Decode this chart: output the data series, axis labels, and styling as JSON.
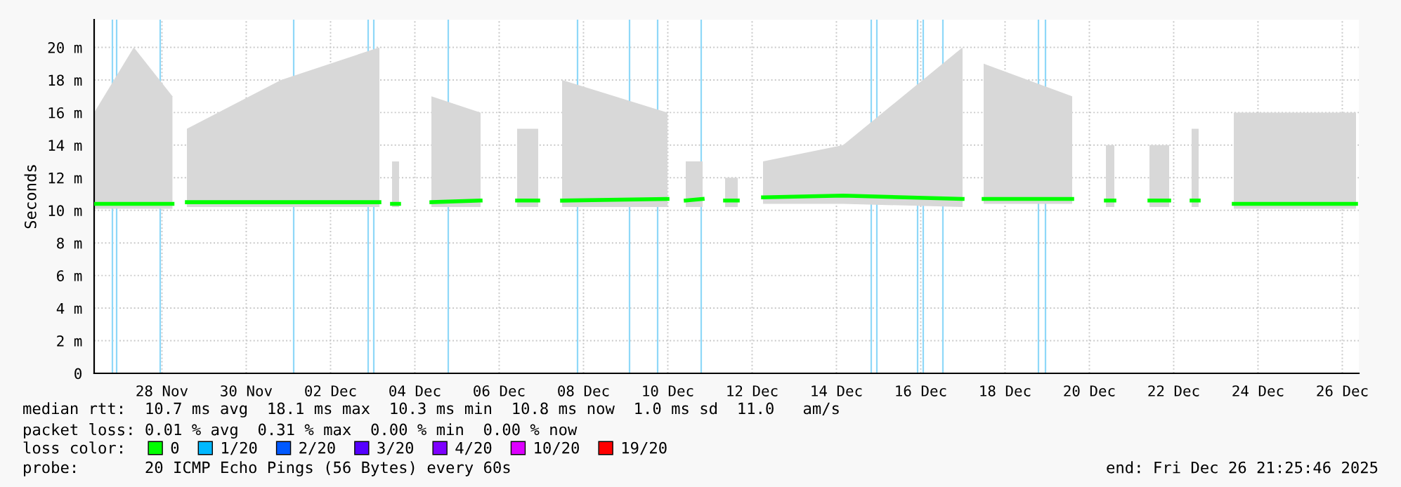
{
  "chart_data": {
    "type": "line",
    "ylabel": "Seconds",
    "x": [
      "2025-11-26T21:25",
      "2025-11-27T20:00",
      "2025-11-28T18:00",
      "2025-11-28T21:00",
      "2025-11-29T02:13",
      "2025-12-01T07:49",
      "2025-12-03T15:49",
      "2025-12-03T20:00",
      "2025-12-03T23:00",
      "2025-12-04T03:00",
      "2025-12-04T06:00",
      "2025-12-04T21:25",
      "2025-12-06T01:25",
      "2025-12-06T12:00",
      "2025-12-06T22:13",
      "2025-12-07T10:13",
      "2025-12-07T17:00",
      "2025-12-07T23:49",
      "2025-12-10T11:49",
      "2025-12-10T17:00",
      "2025-12-10T22:13",
      "2025-12-11T07:49",
      "2025-12-11T14:00",
      "2025-12-11T20:37",
      "2025-12-12T03:49",
      "2025-12-12T11:00",
      "2025-12-12T18:13",
      "2025-12-14T15:49",
      "2025-12-17T11:49",
      "2025-12-17T18:00",
      "2025-12-17T23:49",
      "2025-12-20T02:13",
      "2025-12-20T11:00",
      "2025-12-20T21:25",
      "2025-12-21T02:13",
      "2025-12-21T12:00",
      "2025-12-21T22:13",
      "2025-12-22T09:25",
      "2025-12-22T16:00",
      "2025-12-22T22:13",
      "2025-12-23T02:13",
      "2025-12-23T12:00",
      "2025-12-23T22:13",
      "2025-12-26T19:49"
    ],
    "series": [
      {
        "name": "0",
        "color": "#00ff00",
        "values": [
          10.4,
          10.4,
          10.4,
          null,
          10.5,
          10.5,
          10.5,
          null,
          10.4,
          10.4,
          null,
          10.5,
          10.6,
          null,
          10.6,
          10.6,
          null,
          10.6,
          10.7,
          null,
          10.6,
          10.7,
          null,
          10.6,
          10.6,
          null,
          10.8,
          10.9,
          10.7,
          null,
          10.7,
          10.7,
          null,
          10.6,
          10.6,
          null,
          10.6,
          10.6,
          null,
          10.6,
          10.6,
          null,
          10.4,
          10.4
        ],
        "lower": [
          10.1,
          10.1,
          10.1,
          null,
          10.2,
          10.2,
          10.2,
          null,
          10.2,
          10.2,
          null,
          10.2,
          10.2,
          null,
          10.2,
          10.2,
          null,
          10.2,
          10.2,
          null,
          10.2,
          10.2,
          null,
          10.2,
          10.2,
          null,
          10.4,
          10.4,
          10.2,
          null,
          10.4,
          10.4,
          null,
          10.2,
          10.2,
          null,
          10.2,
          10.2,
          null,
          10.2,
          10.2,
          null,
          10.1,
          10.1
        ],
        "upper": [
          16,
          20,
          17,
          null,
          15,
          18,
          20,
          null,
          13,
          13,
          null,
          17,
          16,
          null,
          15,
          15,
          null,
          18,
          16,
          null,
          13,
          13,
          null,
          12,
          12,
          null,
          13,
          14,
          20,
          null,
          19,
          17,
          null,
          14,
          14,
          null,
          14,
          14,
          null,
          15,
          15,
          null,
          16,
          16
        ]
      },
      {
        "name": "1/20",
        "color": "#00b8ff",
        "values": [
          null,
          null,
          null,
          null,
          null,
          null,
          null,
          null,
          null,
          null,
          null,
          null,
          null,
          null,
          null,
          null,
          null,
          null,
          null,
          null,
          null,
          null,
          null,
          null,
          null,
          null,
          null,
          null,
          null,
          null,
          null,
          null,
          null,
          null,
          null,
          null,
          null,
          null,
          null,
          null,
          null,
          null,
          null,
          null
        ]
      },
      {
        "name": "2/20",
        "color": "#0059ff",
        "values": [
          null,
          null,
          null,
          null,
          null,
          null,
          null,
          null,
          null,
          null,
          null,
          null,
          null,
          null,
          null,
          null,
          null,
          null,
          null,
          null,
          null,
          null,
          null,
          null,
          null,
          null,
          null,
          null,
          null,
          null,
          null,
          null,
          null,
          null,
          null,
          null,
          null,
          null,
          null,
          null,
          null,
          null,
          null,
          null
        ]
      },
      {
        "name": "3/20",
        "color": "#5500ff",
        "values": [
          null,
          null,
          null,
          null,
          null,
          null,
          null,
          null,
          null,
          null,
          null,
          null,
          null,
          null,
          null,
          null,
          null,
          null,
          null,
          null,
          null,
          null,
          null,
          null,
          null,
          null,
          null,
          null,
          null,
          null,
          null,
          null,
          null,
          null,
          null,
          null,
          null,
          null,
          null,
          null,
          null,
          null,
          null,
          null
        ]
      },
      {
        "name": "4/20",
        "color": "#7e00ff",
        "values": [
          null,
          null,
          null,
          null,
          null,
          null,
          null,
          null,
          null,
          null,
          null,
          null,
          null,
          null,
          null,
          null,
          null,
          null,
          null,
          null,
          null,
          null,
          null,
          null,
          null,
          null,
          null,
          null,
          null,
          null,
          null,
          null,
          null,
          null,
          null,
          null,
          null,
          null,
          null,
          null,
          null,
          null,
          null,
          null
        ]
      },
      {
        "name": "10/20",
        "color": "#dd00ff",
        "values": [
          null,
          null,
          null,
          null,
          null,
          null,
          null,
          null,
          null,
          null,
          null,
          null,
          null,
          null,
          null,
          null,
          null,
          null,
          null,
          null,
          null,
          null,
          null,
          null,
          null,
          null,
          null,
          null,
          null,
          null,
          null,
          null,
          null,
          null,
          null,
          null,
          null,
          null,
          null,
          null,
          null,
          null,
          null,
          null
        ]
      },
      {
        "name": "19/20",
        "color": "#ff0000",
        "values": [
          null,
          null,
          null,
          null,
          null,
          null,
          null,
          null,
          null,
          null,
          null,
          null,
          null,
          null,
          null,
          null,
          null,
          null,
          null,
          null,
          null,
          null,
          null,
          null,
          null,
          null,
          null,
          null,
          null,
          null,
          null,
          null,
          null,
          null,
          null,
          null,
          null,
          null,
          null,
          null,
          null,
          null,
          null,
          null
        ]
      }
    ],
    "ref_lines": [
      {
        "axis": "x",
        "value": "2025-11-27T07:49",
        "color": "#8fd8f8"
      },
      {
        "axis": "x",
        "value": "2025-11-27T10:13",
        "color": "#8fd8f8"
      },
      {
        "axis": "x",
        "value": "2025-11-28T11:01",
        "color": "#8fd8f8"
      },
      {
        "axis": "x",
        "value": "2025-12-01T15:01",
        "color": "#8fd8f8"
      },
      {
        "axis": "x",
        "value": "2025-12-03T09:25",
        "color": "#8fd8f8"
      },
      {
        "axis": "x",
        "value": "2025-12-03T12:37",
        "color": "#8fd8f8"
      },
      {
        "axis": "x",
        "value": "2025-12-05T07:01",
        "color": "#8fd8f8"
      },
      {
        "axis": "x",
        "value": "2025-12-08T08:37",
        "color": "#8fd8f8"
      },
      {
        "axis": "x",
        "value": "2025-12-09T14:13",
        "color": "#8fd8f8"
      },
      {
        "axis": "x",
        "value": "2025-12-10T06:13",
        "color": "#8fd8f8"
      },
      {
        "axis": "x",
        "value": "2025-12-11T07:01",
        "color": "#8fd8f8"
      },
      {
        "axis": "x",
        "value": "2025-12-15T07:49",
        "color": "#8fd8f8"
      },
      {
        "axis": "x",
        "value": "2025-12-15T11:01",
        "color": "#8fd8f8"
      },
      {
        "axis": "x",
        "value": "2025-12-16T10:13",
        "color": "#8fd8f8"
      },
      {
        "axis": "x",
        "value": "2025-12-16T13:25",
        "color": "#8fd8f8"
      },
      {
        "axis": "x",
        "value": "2025-12-17T00:37",
        "color": "#8fd8f8"
      },
      {
        "axis": "x",
        "value": "2025-12-19T07:01",
        "color": "#8fd8f8"
      },
      {
        "axis": "x",
        "value": "2025-12-19T11:01",
        "color": "#8fd8f8"
      }
    ],
    "xlim": [
      "2025-11-26T21:25",
      "2025-12-26T21:25"
    ],
    "xticks": [
      {
        "value": "2025-11-28T12:00",
        "label": "28 Nov"
      },
      {
        "value": "2025-11-30T12:00",
        "label": "30 Nov"
      },
      {
        "value": "2025-12-02T12:00",
        "label": "02 Dec"
      },
      {
        "value": "2025-12-04T12:00",
        "label": "04 Dec"
      },
      {
        "value": "2025-12-06T12:00",
        "label": "06 Dec"
      },
      {
        "value": "2025-12-08T12:00",
        "label": "08 Dec"
      },
      {
        "value": "2025-12-10T12:00",
        "label": "10 Dec"
      },
      {
        "value": "2025-12-12T12:00",
        "label": "12 Dec"
      },
      {
        "value": "2025-12-14T12:00",
        "label": "14 Dec"
      },
      {
        "value": "2025-12-16T12:00",
        "label": "16 Dec"
      },
      {
        "value": "2025-12-18T12:00",
        "label": "18 Dec"
      },
      {
        "value": "2025-12-20T12:00",
        "label": "20 Dec"
      },
      {
        "value": "2025-12-22T12:00",
        "label": "22 Dec"
      },
      {
        "value": "2025-12-24T12:00",
        "label": "24 Dec"
      },
      {
        "value": "2025-12-26T12:00",
        "label": "26 Dec"
      }
    ],
    "ylim": [
      0,
      21.7
    ],
    "yticks": [
      0,
      {
        "value": 2,
        "label": "2 m"
      },
      {
        "value": 4,
        "label": "4 m"
      },
      {
        "value": 6,
        "label": "6 m"
      },
      {
        "value": 8,
        "label": "8 m"
      },
      {
        "value": 10,
        "label": "10 m"
      },
      {
        "value": 12,
        "label": "12 m"
      },
      {
        "value": 14,
        "label": "14 m"
      },
      {
        "value": 16,
        "label": "16 m"
      },
      {
        "value": 18,
        "label": "18 m"
      },
      {
        "value": 20,
        "label": "20 m"
      }
    ],
    "grid": true,
    "legend": "bottom",
    "legend_title": "loss color:",
    "annotations": [
      "median rtt:  10.7 ms avg  18.1 ms max  10.3 ms min  10.8 ms now  1.0 ms sd  11.0   am/s",
      "packet loss: 0.01 % avg  0.31 % max  0.00 % min  0.00 % now",
      "probe:       20 ICMP Echo Pings (56 Bytes) every 60s",
      "end: Fri Dec 26 21:25:46 2025"
    ]
  }
}
